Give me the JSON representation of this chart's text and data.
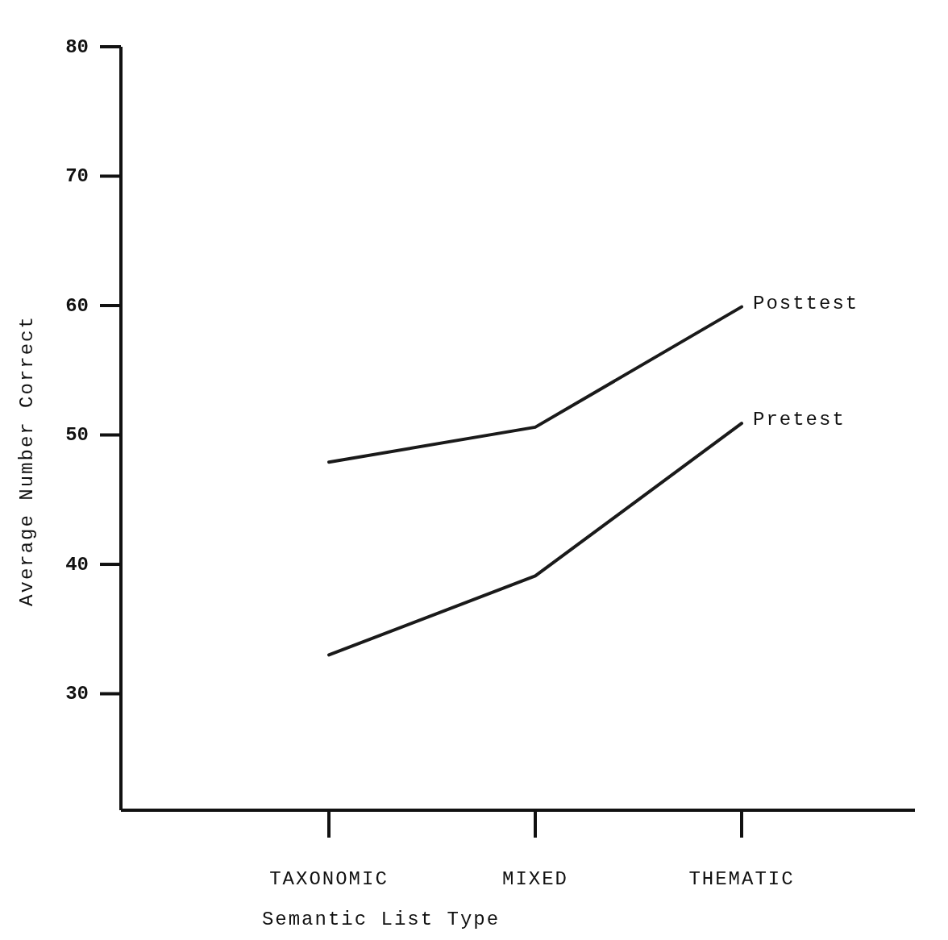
{
  "chart_data": {
    "type": "line",
    "xlabel": "Semantic List Type",
    "ylabel": "Average Number Correct",
    "categories": [
      "TAXONOMIC",
      "MIXED",
      "THEMATIC"
    ],
    "series": [
      {
        "name": "Posttest",
        "color": "#1a1a1a",
        "values": [
          47.9,
          50.6,
          59.9
        ]
      },
      {
        "name": "Pretest",
        "color": "#1a1a1a",
        "values": [
          33.0,
          39.1,
          50.9
        ]
      }
    ],
    "ylim": [
      21,
      80
    ],
    "yticks": [
      30,
      40,
      50,
      60,
      70,
      80
    ],
    "grid": false,
    "legend": false,
    "marker": "none",
    "line_style": "solid"
  }
}
